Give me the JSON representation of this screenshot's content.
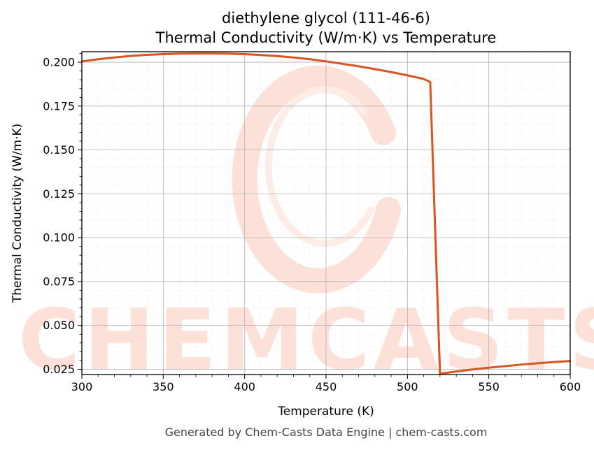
{
  "chart_data": {
    "type": "line",
    "title": "diethylene glycol (111-46-6)",
    "subtitle": "Thermal Conductivity (W/m·K) vs Temperature",
    "xlabel": "Temperature (K)",
    "ylabel": "Thermal Conductivity (W/m·K)",
    "xlim": [
      300,
      600
    ],
    "ylim": [
      0.022,
      0.206
    ],
    "xticks": [
      300,
      350,
      400,
      450,
      500,
      550,
      600
    ],
    "yticks": [
      0.025,
      0.05,
      0.075,
      0.1,
      0.125,
      0.15,
      0.175,
      0.2
    ],
    "ytick_labels": [
      "0.025",
      "0.050",
      "0.075",
      "0.100",
      "0.125",
      "0.150",
      "0.175",
      "0.200"
    ],
    "grid": true,
    "line_color": "#d9541e",
    "series": [
      {
        "x": [
          300,
          310,
          320,
          330,
          340,
          350,
          360,
          370,
          380,
          390,
          400,
          410,
          420,
          430,
          440,
          450,
          460,
          470,
          480,
          490,
          500,
          510,
          514,
          520,
          530,
          540,
          550,
          560,
          570,
          580,
          590,
          600
        ],
        "values": [
          0.2005,
          0.2017,
          0.2027,
          0.2036,
          0.2042,
          0.2046,
          0.2049,
          0.205,
          0.205,
          0.2049,
          0.2046,
          0.2041,
          0.2035,
          0.2027,
          0.2017,
          0.2005,
          0.1991,
          0.1977,
          0.1961,
          0.1944,
          0.1925,
          0.1905,
          0.1887,
          0.0225,
          0.0237,
          0.0249,
          0.0259,
          0.0268,
          0.0277,
          0.0284,
          0.0291,
          0.0297
        ]
      }
    ]
  },
  "watermark": {
    "text": "CHEMCASTS",
    "color": "#fde0d8"
  },
  "footer": "Generated by Chem-Casts Data Engine | chem-casts.com"
}
